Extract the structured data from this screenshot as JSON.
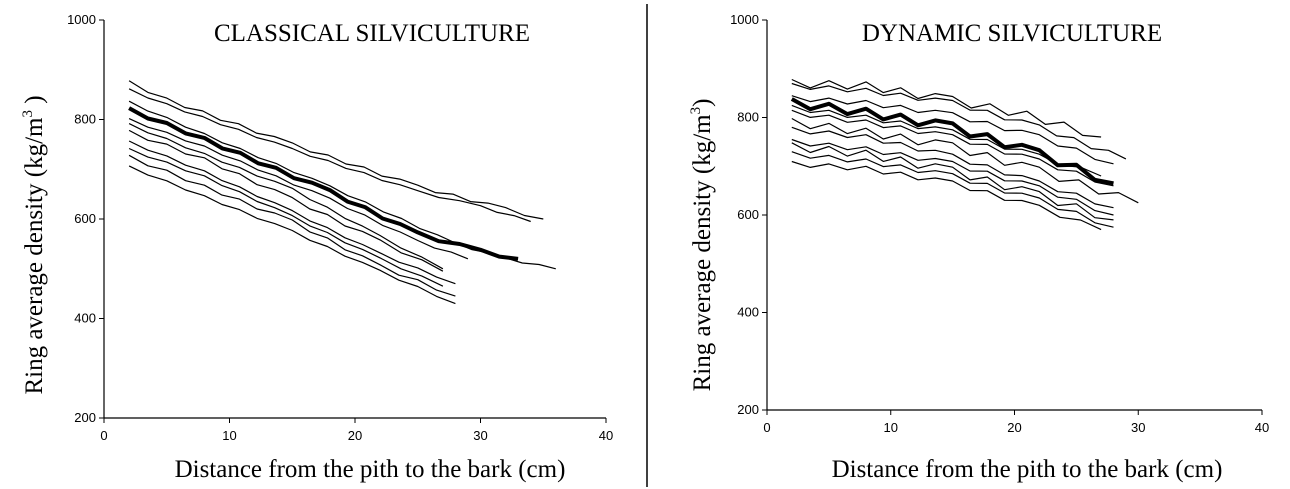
{
  "figure": {
    "divider_color": "#000000",
    "line_color": "#000000"
  },
  "chart_data": [
    {
      "type": "line",
      "title": "CLASSICAL SILVICULTURE",
      "ylabel": "Ring average density (kg/m",
      "ylabel_superscript": "3",
      "ylabel_suffix": " )",
      "xlabel": "Distance from the pith to the bark (cm)",
      "xlim": [
        0,
        40
      ],
      "ylim": [
        200,
        1000
      ],
      "xticks": [
        0,
        10,
        20,
        30,
        40
      ],
      "yticks": [
        200,
        400,
        600,
        800,
        1000
      ],
      "grid": false,
      "series": [
        {
          "points": [
            [
              2,
              875
            ],
            [
              5,
              840
            ],
            [
              15,
              750
            ],
            [
              25,
              665
            ],
            [
              32,
              620
            ],
            [
              35,
              600
            ]
          ]
        },
        {
          "points": [
            [
              2,
              860
            ],
            [
              5,
              830
            ],
            [
              15,
              740
            ],
            [
              25,
              655
            ],
            [
              30,
              625
            ],
            [
              34,
              595
            ]
          ]
        },
        {
          "points": [
            [
              2,
              835
            ],
            [
              8,
              770
            ],
            [
              18,
              665
            ],
            [
              28,
              550
            ],
            [
              32,
              520
            ],
            [
              36,
              500
            ]
          ]
        },
        {
          "points": [
            [
              2,
              820
            ],
            [
              8,
              760
            ],
            [
              18,
              655
            ],
            [
              25,
              570
            ],
            [
              30,
              535
            ],
            [
              33,
              520
            ]
          ],
          "emphasized": true
        },
        {
          "points": [
            [
              2,
              800
            ],
            [
              8,
              745
            ],
            [
              18,
              640
            ],
            [
              25,
              555
            ],
            [
              29,
              520
            ]
          ]
        },
        {
          "points": [
            [
              2,
              790
            ],
            [
              8,
              730
            ],
            [
              15,
              660
            ],
            [
              22,
              565
            ],
            [
              27,
              500
            ]
          ]
        },
        {
          "points": [
            [
              2,
              775
            ],
            [
              8,
              720
            ],
            [
              15,
              640
            ],
            [
              22,
              555
            ],
            [
              27,
              495
            ]
          ]
        },
        {
          "points": [
            [
              2,
              755
            ],
            [
              8,
              695
            ],
            [
              15,
              615
            ],
            [
              22,
              530
            ],
            [
              28,
              470
            ]
          ]
        },
        {
          "points": [
            [
              2,
              740
            ],
            [
              8,
              685
            ],
            [
              15,
              605
            ],
            [
              22,
              520
            ],
            [
              27,
              465
            ]
          ]
        },
        {
          "points": [
            [
              2,
              725
            ],
            [
              8,
              665
            ],
            [
              15,
              595
            ],
            [
              22,
              505
            ],
            [
              28,
              445
            ]
          ]
        },
        {
          "points": [
            [
              2,
              705
            ],
            [
              8,
              645
            ],
            [
              15,
              575
            ],
            [
              22,
              495
            ],
            [
              28,
              430
            ]
          ]
        }
      ]
    },
    {
      "type": "line",
      "title": "DYNAMIC SILVICULTURE",
      "ylabel": "Ring average density (kg/m",
      "ylabel_superscript": "3",
      "ylabel_suffix": ")",
      "xlabel": "Distance from the pith to the bark (cm)",
      "xlim": [
        0,
        40
      ],
      "ylim": [
        200,
        1000
      ],
      "xticks": [
        0,
        10,
        20,
        30,
        40
      ],
      "yticks": [
        200,
        400,
        600,
        800,
        1000
      ],
      "grid": false,
      "series": [
        {
          "points": [
            [
              2,
              870
            ],
            [
              8,
              865
            ],
            [
              15,
              835
            ],
            [
              21,
              805
            ],
            [
              27,
              760
            ]
          ]
        },
        {
          "points": [
            [
              2,
              865
            ],
            [
              8,
              855
            ],
            [
              15,
              830
            ],
            [
              22,
              780
            ],
            [
              29,
              715
            ]
          ]
        },
        {
          "points": [
            [
              2,
              840
            ],
            [
              8,
              830
            ],
            [
              15,
              805
            ],
            [
              22,
              760
            ],
            [
              28,
              705
            ]
          ]
        },
        {
          "points": [
            [
              2,
              830
            ],
            [
              8,
              810
            ],
            [
              15,
              780
            ],
            [
              22,
              725
            ],
            [
              28,
              665
            ]
          ],
          "emphasized": true
        },
        {
          "points": [
            [
              2,
              820
            ],
            [
              8,
              800
            ],
            [
              15,
              770
            ],
            [
              22,
              720
            ],
            [
              27,
              680
            ]
          ]
        },
        {
          "points": [
            [
              2,
              810
            ],
            [
              8,
              790
            ],
            [
              15,
              760
            ],
            [
              22,
              710
            ],
            [
              28,
              660
            ]
          ]
        },
        {
          "points": [
            [
              2,
              790
            ],
            [
              8,
              770
            ],
            [
              15,
              740
            ],
            [
              22,
              690
            ],
            [
              30,
              625
            ]
          ]
        },
        {
          "points": [
            [
              2,
              775
            ],
            [
              8,
              760
            ],
            [
              15,
              720
            ],
            [
              22,
              665
            ],
            [
              28,
              615
            ]
          ]
        },
        {
          "points": [
            [
              2,
              750
            ],
            [
              8,
              735
            ],
            [
              15,
              705
            ],
            [
              22,
              655
            ],
            [
              28,
              600
            ]
          ]
        },
        {
          "points": [
            [
              2,
              740
            ],
            [
              8,
              725
            ],
            [
              15,
              690
            ],
            [
              22,
              640
            ],
            [
              28,
              590
            ]
          ]
        },
        {
          "points": [
            [
              2,
              725
            ],
            [
              8,
              710
            ],
            [
              15,
              680
            ],
            [
              22,
              630
            ],
            [
              28,
              575
            ]
          ]
        },
        {
          "points": [
            [
              2,
              705
            ],
            [
              8,
              695
            ],
            [
              15,
              665
            ],
            [
              22,
              615
            ],
            [
              27,
              570
            ]
          ]
        }
      ]
    }
  ]
}
